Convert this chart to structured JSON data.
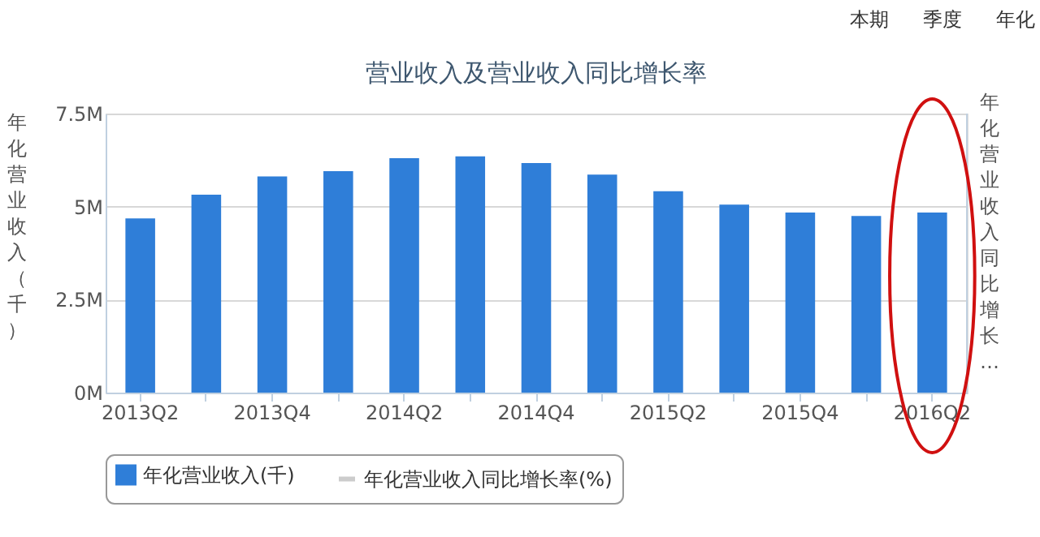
{
  "chart_data": {
    "type": "bar",
    "title": "营业收入及营业收入同比增长率",
    "ylabel": "年化营业收入（千）",
    "y2label": "年化营业收入同比增长…",
    "categories": [
      "2013Q2",
      null,
      "2013Q4",
      null,
      "2014Q2",
      null,
      "2014Q4",
      null,
      "2015Q2",
      null,
      "2015Q4",
      null,
      "2016Q2"
    ],
    "series": [
      {
        "name": "年化营业收入(千)",
        "color": "#2f7ed8",
        "values": [
          4.68,
          5.32,
          5.81,
          5.95,
          6.3,
          6.35,
          6.17,
          5.86,
          5.41,
          5.05,
          4.84,
          4.75,
          4.84
        ]
      },
      {
        "name": "年化营业收入同比增长率(%)",
        "color": "#cccccc",
        "type": "line",
        "axis": "y2",
        "values": [
          null,
          null,
          null,
          null,
          null,
          null,
          null,
          null,
          null,
          null,
          null,
          null,
          null
        ]
      }
    ],
    "ylim": [
      0,
      7.5
    ],
    "yticks": [
      {
        "value": 0,
        "label": "0M"
      },
      {
        "value": 2.5,
        "label": "2.5M"
      },
      {
        "value": 5,
        "label": "5M"
      },
      {
        "value": 7.5,
        "label": "7.5M"
      }
    ],
    "grid": "y",
    "legend": "bottom",
    "annotations": [
      "本期",
      "季度",
      "年化"
    ]
  }
}
